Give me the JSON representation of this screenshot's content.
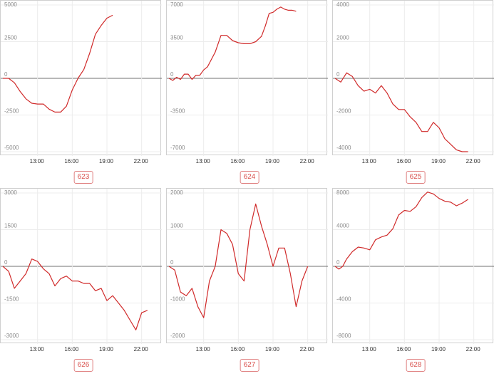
{
  "colors": {
    "line": "#d02a2a",
    "grid": "#ececec",
    "zero": "#707070",
    "axis_text": "#8a8a8a",
    "badge": "#d9534f"
  },
  "chart_data": [
    {
      "type": "line",
      "id": "623",
      "y_ticks": [
        "5000",
        "2500",
        "0",
        "-2500",
        "-5000"
      ],
      "ylim": [
        -5000,
        5000
      ],
      "x_ticks": [
        "13:00",
        "16:00",
        "19:00",
        "22:00"
      ],
      "x": [
        "10:00",
        "10:30",
        "11:00",
        "11:30",
        "12:00",
        "12:30",
        "13:00",
        "13:30",
        "14:00",
        "14:30",
        "15:00",
        "15:30",
        "16:00",
        "16:30",
        "17:00",
        "17:30",
        "18:00",
        "18:30",
        "19:00",
        "19:30"
      ],
      "values": [
        0,
        0,
        -300,
        -900,
        -1400,
        -1700,
        -1750,
        -1750,
        -2100,
        -2300,
        -2300,
        -1900,
        -800,
        0,
        600,
        1700,
        3000,
        3600,
        4100,
        4300
      ]
    },
    {
      "type": "line",
      "id": "624",
      "y_ticks": [
        "7000",
        "3500",
        "0",
        "-3500",
        "-7000"
      ],
      "ylim": [
        -7000,
        7000
      ],
      "x_ticks": [
        "13:00",
        "16:00",
        "19:00",
        "22:00"
      ],
      "x": [
        "10:00",
        "10:20",
        "10:40",
        "11:00",
        "11:20",
        "11:40",
        "12:00",
        "12:20",
        "12:40",
        "13:00",
        "13:20",
        "13:40",
        "14:00",
        "14:30",
        "15:00",
        "15:30",
        "16:00",
        "16:30",
        "17:00",
        "17:30",
        "18:00",
        "18:20",
        "18:40",
        "19:00",
        "19:20",
        "19:40",
        "20:00",
        "20:20",
        "20:40",
        "21:00"
      ],
      "values": [
        0,
        -200,
        100,
        -100,
        400,
        400,
        -100,
        300,
        300,
        800,
        1100,
        1800,
        2500,
        4100,
        4100,
        3600,
        3400,
        3300,
        3300,
        3500,
        4000,
        5000,
        6200,
        6300,
        6600,
        6800,
        6600,
        6500,
        6500,
        6400
      ]
    },
    {
      "type": "line",
      "id": "625",
      "y_ticks": [
        "4000",
        "2000",
        "0",
        "-2000",
        "-4000"
      ],
      "ylim": [
        -4000,
        4000
      ],
      "x_ticks": [
        "13:00",
        "16:00",
        "19:00",
        "22:00"
      ],
      "x": [
        "10:00",
        "10:30",
        "11:00",
        "11:30",
        "12:00",
        "12:30",
        "13:00",
        "13:30",
        "14:00",
        "14:30",
        "15:00",
        "15:30",
        "16:00",
        "16:30",
        "17:00",
        "17:30",
        "18:00",
        "18:30",
        "19:00",
        "19:30",
        "20:00",
        "20:30",
        "21:00",
        "21:30"
      ],
      "values": [
        0,
        -200,
        300,
        100,
        -400,
        -700,
        -600,
        -800,
        -400,
        -800,
        -1400,
        -1700,
        -1700,
        -2100,
        -2400,
        -2900,
        -2900,
        -2400,
        -2700,
        -3300,
        -3600,
        -3900,
        -4000,
        -4000
      ]
    },
    {
      "type": "line",
      "id": "626",
      "y_ticks": [
        "3000",
        "1500",
        "0",
        "-1500",
        "-3000"
      ],
      "ylim": [
        -3000,
        3000
      ],
      "x_ticks": [
        "13:00",
        "16:00",
        "19:00",
        "22:00"
      ],
      "x": [
        "10:00",
        "10:30",
        "11:00",
        "11:30",
        "12:00",
        "12:30",
        "13:00",
        "13:30",
        "14:00",
        "14:30",
        "15:00",
        "15:30",
        "16:00",
        "16:30",
        "17:00",
        "17:30",
        "18:00",
        "18:30",
        "19:00",
        "19:30",
        "20:00",
        "20:30",
        "21:00",
        "21:30",
        "22:00",
        "22:30"
      ],
      "values": [
        0,
        -200,
        -900,
        -600,
        -300,
        300,
        200,
        -100,
        -300,
        -800,
        -500,
        -400,
        -600,
        -600,
        -700,
        -700,
        -1000,
        -900,
        -1400,
        -1200,
        -1500,
        -1800,
        -2200,
        -2600,
        -1900,
        -1800
      ]
    },
    {
      "type": "line",
      "id": "627",
      "y_ticks": [
        "2000",
        "1000",
        "0",
        "-1000",
        "-2000"
      ],
      "ylim": [
        -2000,
        2000
      ],
      "x_ticks": [
        "13:00",
        "16:00",
        "19:00",
        "22:00"
      ],
      "x": [
        "10:00",
        "10:30",
        "11:00",
        "11:30",
        "12:00",
        "12:30",
        "13:00",
        "13:30",
        "14:00",
        "14:30",
        "15:00",
        "15:30",
        "16:00",
        "16:30",
        "17:00",
        "17:30",
        "18:00",
        "18:30",
        "19:00",
        "19:30",
        "20:00",
        "20:30",
        "21:00",
        "21:30",
        "22:00"
      ],
      "values": [
        0,
        -100,
        -700,
        -800,
        -600,
        -1100,
        -1400,
        -400,
        0,
        1000,
        900,
        600,
        -200,
        -400,
        1000,
        1700,
        1100,
        600,
        0,
        500,
        500,
        -200,
        -1100,
        -400,
        0
      ]
    },
    {
      "type": "line",
      "id": "628",
      "y_ticks": [
        "8000",
        "4000",
        "0",
        "-4000",
        "-8000"
      ],
      "ylim": [
        -8000,
        8000
      ],
      "x_ticks": [
        "13:00",
        "16:00",
        "19:00",
        "22:00"
      ],
      "x": [
        "10:00",
        "10:20",
        "10:40",
        "11:00",
        "11:30",
        "12:00",
        "12:30",
        "13:00",
        "13:30",
        "14:00",
        "14:30",
        "15:00",
        "15:30",
        "16:00",
        "16:30",
        "17:00",
        "17:30",
        "18:00",
        "18:30",
        "19:00",
        "19:30",
        "20:00",
        "20:30",
        "21:00",
        "21:30"
      ],
      "values": [
        0,
        -300,
        0,
        800,
        1600,
        2100,
        2000,
        1800,
        2900,
        3200,
        3400,
        4100,
        5600,
        6100,
        6000,
        6500,
        7500,
        8100,
        7900,
        7400,
        7100,
        7000,
        6600,
        6900,
        7300
      ]
    }
  ]
}
